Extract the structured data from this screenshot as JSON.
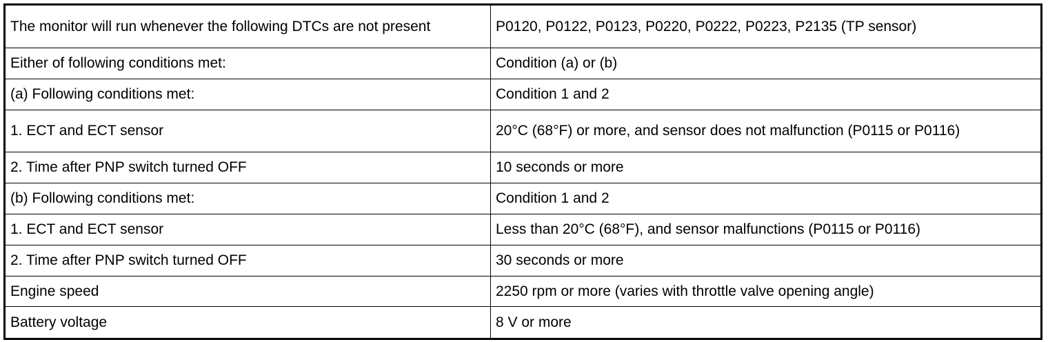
{
  "rows": [
    {
      "condition": "The monitor will run whenever the following DTCs are not present",
      "value": "P0120, P0122, P0123, P0220, P0222, P0223, P2135 (TP sensor)"
    },
    {
      "condition": "Either of following conditions met:",
      "value": "Condition (a) or (b)"
    },
    {
      "condition": "(a) Following conditions met:",
      "value": "Condition 1 and 2"
    },
    {
      "condition": "1. ECT and ECT sensor",
      "value": "20°C (68°F) or more, and sensor does not malfunction (P0115 or P0116)"
    },
    {
      "condition": "2. Time after PNP switch turned OFF",
      "value": "10 seconds or more"
    },
    {
      "condition": "(b) Following conditions met:",
      "value": "Condition 1 and 2"
    },
    {
      "condition": "1. ECT and ECT sensor",
      "value": "Less than 20°C (68°F), and sensor malfunctions (P0115 or P0116)"
    },
    {
      "condition": "2. Time after PNP switch turned OFF",
      "value": "30 seconds or more"
    },
    {
      "condition": "Engine speed",
      "value": "2250 rpm or more (varies with throttle valve opening angle)"
    },
    {
      "condition": "Battery voltage",
      "value": "8 V or more"
    }
  ]
}
